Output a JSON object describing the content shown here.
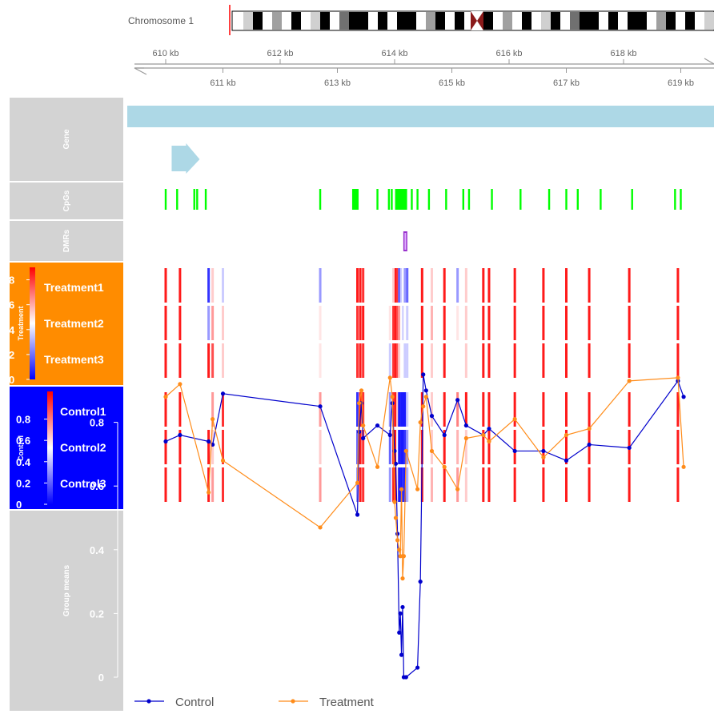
{
  "chromosome": {
    "label": "Chromosome 1"
  },
  "axis": {
    "top_ticks": [
      "610 kb",
      "612 kb",
      "614 kb",
      "616 kb",
      "618 kb"
    ],
    "top_tick_values": [
      610,
      612,
      614,
      616,
      618
    ],
    "bottom_ticks": [
      "611 kb",
      "613 kb",
      "615 kb",
      "617 kb",
      "619 kb"
    ],
    "bottom_tick_values": [
      611,
      613,
      615,
      617,
      619
    ],
    "range_kb": [
      609.8,
      619.5
    ]
  },
  "tracks": {
    "gene": "Gene",
    "cpgs": "CpGs",
    "dmrs": "DMRs",
    "treatment": "Treatment",
    "control": "Control",
    "group_means": "Group means"
  },
  "colors": {
    "treatment_panel": "#ff8c00",
    "control_panel": "#0000ff",
    "gene": "#add8e6",
    "cpg": "#00ff00",
    "dmr": "#9932cc",
    "control_line": "#0000cc",
    "treatment_line": "#ff8c1a",
    "track_bg": "#d3d3d3"
  },
  "treatment_scale": {
    "ticks": [
      "8",
      "6",
      "4",
      "2",
      "0"
    ],
    "tick_values": [
      8,
      6,
      4,
      2,
      0
    ],
    "range": [
      0,
      9
    ]
  },
  "control_scale": {
    "ticks": [
      "0.8",
      "0.6",
      "0.4",
      "0.2",
      "0"
    ],
    "tick_values": [
      0.8,
      0.6,
      0.4,
      0.2,
      0
    ],
    "range": [
      0,
      1
    ]
  },
  "treatment_samples": [
    "Treatment1",
    "Treatment2",
    "Treatment3"
  ],
  "control_samples": [
    "Control1",
    "Control2",
    "Control3"
  ],
  "gene_region_kb": [
    609.8,
    619.5
  ],
  "gene_arrow_kb": 610.3,
  "cpg_positions_kb": [
    610.0,
    610.2,
    610.5,
    610.55,
    610.7,
    612.7,
    613.3,
    613.35,
    613.7,
    613.9,
    613.95,
    614.05,
    614.3,
    614.4,
    614.6,
    614.9,
    615.2,
    615.3,
    615.7,
    616.2,
    616.7,
    617.0,
    617.2,
    617.6,
    618.15,
    618.9,
    619.0
  ],
  "dmr_kb": [
    614.18,
    614.22
  ],
  "heatmap": {
    "positions_kb": [
      610.0,
      610.25,
      610.75,
      610.82,
      611.0,
      612.7,
      613.35,
      613.4,
      613.45,
      613.92,
      613.98,
      614.02,
      614.05,
      614.08,
      614.12,
      614.15,
      614.18,
      614.22,
      614.48,
      614.65,
      614.87,
      615.1,
      615.25,
      615.55,
      615.65,
      616.1,
      616.6,
      617.0,
      617.4,
      618.1,
      618.95
    ],
    "treatment": [
      [
        0.95,
        0.95,
        0.1,
        0.6,
        0.4,
        0.3,
        0.95,
        0.95,
        0.9,
        0.5,
        0.6,
        0.95,
        0.9,
        0.2,
        0.4,
        0.5,
        0.3,
        0.2,
        0.95,
        0.6,
        0.95,
        0.3,
        0.6,
        0.95,
        0.95,
        0.95,
        0.95,
        0.95,
        0.95,
        0.95,
        0.95
      ],
      [
        0.95,
        0.95,
        0.3,
        0.7,
        0.6,
        0.55,
        0.9,
        0.95,
        0.95,
        0.55,
        0.9,
        0.95,
        0.85,
        0.7,
        0.5,
        0.4,
        0.5,
        0.4,
        0.95,
        0.65,
        0.95,
        0.55,
        0.6,
        0.95,
        0.95,
        0.95,
        0.95,
        0.95,
        0.95,
        0.95,
        0.95
      ],
      [
        0.95,
        0.95,
        0.95,
        0.85,
        0.6,
        0.55,
        0.9,
        0.95,
        0.9,
        0.4,
        0.9,
        0.95,
        0.85,
        0.6,
        0.5,
        0.5,
        0.4,
        0.4,
        0.95,
        0.6,
        0.95,
        0.5,
        0.6,
        0.95,
        0.95,
        0.95,
        0.95,
        0.95,
        0.95,
        0.95,
        0.95
      ]
    ],
    "control": [
      [
        0.95,
        0.95,
        0.5,
        0.7,
        0.9,
        0.7,
        0.1,
        0.95,
        0.9,
        0.3,
        0.9,
        0.95,
        0.6,
        0.05,
        0.05,
        0.05,
        0.05,
        0.4,
        0.95,
        0.6,
        0.95,
        0.75,
        0.95,
        0.95,
        0.95,
        0.95,
        0.95,
        0.95,
        0.95,
        0.95,
        0.95
      ],
      [
        0.95,
        0.95,
        0.95,
        0.6,
        0.9,
        0.6,
        0.2,
        0.95,
        0.9,
        0.2,
        0.95,
        0.95,
        0.5,
        0.05,
        0.05,
        0.05,
        0.1,
        0.3,
        0.95,
        0.6,
        0.95,
        0.65,
        0.6,
        0.95,
        0.95,
        0.95,
        0.95,
        0.95,
        0.95,
        0.95,
        0.95
      ],
      [
        0.95,
        0.95,
        0.95,
        0.7,
        0.9,
        0.7,
        0.3,
        0.95,
        0.9,
        0.3,
        0.95,
        0.95,
        0.55,
        0.05,
        0.05,
        0.1,
        0.05,
        0.35,
        0.95,
        0.65,
        0.95,
        0.7,
        0.6,
        0.95,
        0.95,
        0.95,
        0.95,
        0.95,
        0.95,
        0.95,
        0.95
      ]
    ]
  },
  "chart_data": {
    "type": "line",
    "title": "",
    "xlabel": "",
    "ylabel": "Group means",
    "ylim": [
      0,
      1
    ],
    "yticks": [
      "0.8",
      "0.6",
      "0.4",
      "0.2",
      "0"
    ],
    "ytick_values": [
      0.8,
      0.6,
      0.4,
      0.2,
      0
    ],
    "grid": false,
    "legend_placement": "bottom",
    "series": [
      {
        "name": "Control",
        "color": "#0000cc",
        "x": [
          610.0,
          610.25,
          610.75,
          610.82,
          611.0,
          612.7,
          613.35,
          613.38,
          613.42,
          613.45,
          613.7,
          613.92,
          613.96,
          614.0,
          614.02,
          614.05,
          614.08,
          614.1,
          614.12,
          614.14,
          614.16,
          614.2,
          614.4,
          614.45,
          614.5,
          614.55,
          614.65,
          614.87,
          615.1,
          615.25,
          615.55,
          615.65,
          616.1,
          616.6,
          617.0,
          617.4,
          618.1,
          618.95,
          619.05
        ],
        "y": [
          0.74,
          0.76,
          0.74,
          0.73,
          0.89,
          0.85,
          0.51,
          0.77,
          0.86,
          0.75,
          0.79,
          0.76,
          0.86,
          0.71,
          0.67,
          0.45,
          0.14,
          0.2,
          0.07,
          0.22,
          0.0,
          0.0,
          0.03,
          0.3,
          0.95,
          0.9,
          0.82,
          0.76,
          0.87,
          0.79,
          0.76,
          0.78,
          0.71,
          0.71,
          0.68,
          0.73,
          0.72,
          0.93,
          0.88
        ]
      },
      {
        "name": "Treatment",
        "color": "#ff8c1a",
        "x": [
          610.0,
          610.25,
          610.75,
          610.82,
          611.0,
          612.7,
          613.35,
          613.38,
          613.42,
          613.45,
          613.7,
          613.92,
          613.96,
          614.0,
          614.02,
          614.05,
          614.08,
          614.1,
          614.12,
          614.14,
          614.16,
          614.2,
          614.4,
          614.45,
          614.5,
          614.55,
          614.65,
          614.87,
          615.1,
          615.25,
          615.55,
          615.65,
          616.1,
          616.6,
          617.0,
          617.4,
          618.1,
          618.95,
          619.05
        ],
        "y": [
          0.88,
          0.92,
          0.58,
          0.81,
          0.68,
          0.47,
          0.61,
          0.86,
          0.9,
          0.79,
          0.66,
          0.94,
          0.88,
          0.55,
          0.5,
          0.43,
          0.4,
          0.38,
          0.59,
          0.31,
          0.38,
          0.71,
          0.59,
          0.8,
          0.85,
          0.88,
          0.71,
          0.66,
          0.59,
          0.75,
          0.76,
          0.74,
          0.81,
          0.69,
          0.76,
          0.78,
          0.93,
          0.94,
          0.66
        ]
      }
    ]
  }
}
